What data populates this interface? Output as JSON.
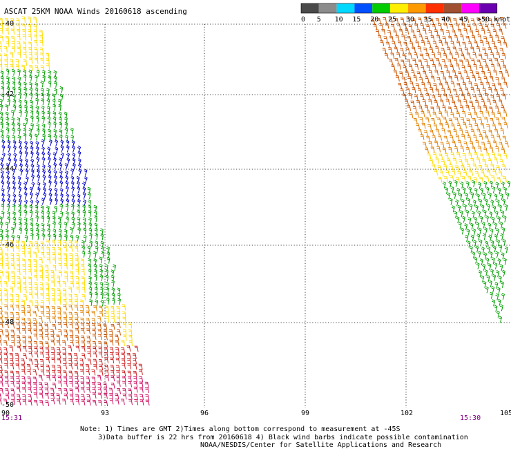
{
  "title": "ASCAT 25KM NOAA Winds 20160618 ascending",
  "legend": {
    "labels": [
      "0",
      "5",
      "10",
      "15",
      "20",
      "25",
      "30",
      "35",
      "40",
      "45",
      ">50 knots"
    ],
    "colors": [
      "#4a4a4a",
      "#8c8c8c",
      "#00d8ff",
      "#0050ff",
      "#00cc00",
      "#ffee00",
      "#ff9900",
      "#ff3000",
      "#a05030",
      "#ff00ff",
      "#6a00b0"
    ]
  },
  "map": {
    "lon_ticks": [
      "90",
      "93",
      "96",
      "99",
      "102",
      "105"
    ],
    "lat_ticks": [
      "-40",
      "-42",
      "-44",
      "-46",
      "-48",
      "-50"
    ],
    "time_left": "15:31",
    "time_right": "15:30"
  },
  "notes": {
    "line1": "Note: 1) Times are GMT 2)Times along bottom correspond to measurement at -45S",
    "line2": "3)Data buffer is 22 hrs from 20160618 4) Black wind barbs indicate possible contamination",
    "line3": "NOAA/NESDIS/Center for Satellite Applications and Research"
  },
  "colors": {
    "blue": "#0000cc",
    "green": "#00a000",
    "yellow": "#ffdd00",
    "orange": "#e08000",
    "darkorange": "#cc5500",
    "red": "#cc2020",
    "crimson": "#cc1060",
    "timestamp": "#800080"
  }
}
